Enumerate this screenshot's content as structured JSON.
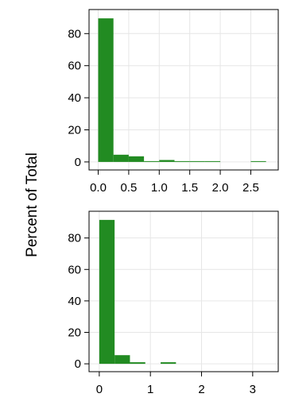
{
  "colors": {
    "bar": "#228b22",
    "grid": "#e6e6e6",
    "frame": "#000000"
  },
  "chart_data": {
    "type": "histogram",
    "ylabel": "Percent of Total",
    "grid": true,
    "panels": [
      {
        "name": "top",
        "xlim": [
          -0.15,
          2.95
        ],
        "ylim": [
          -5,
          95
        ],
        "xticks": [
          0.0,
          0.5,
          1.0,
          1.5,
          2.0,
          2.5
        ],
        "xtick_labels": [
          "0.0",
          "0.5",
          "1.0",
          "1.5",
          "2.0",
          "2.5"
        ],
        "yticks": [
          0,
          20,
          40,
          60,
          80
        ],
        "ytick_labels": [
          "0",
          "20",
          "40",
          "60",
          "80"
        ],
        "bins": [
          {
            "x0": 0.0,
            "x1": 0.25,
            "percent": 89.5
          },
          {
            "x0": 0.25,
            "x1": 0.5,
            "percent": 4.5
          },
          {
            "x0": 0.5,
            "x1": 0.75,
            "percent": 3.5
          },
          {
            "x0": 0.75,
            "x1": 1.0,
            "percent": 0.5
          },
          {
            "x0": 1.0,
            "x1": 1.25,
            "percent": 1.2
          },
          {
            "x0": 1.25,
            "x1": 1.5,
            "percent": 0.5
          },
          {
            "x0": 1.5,
            "x1": 1.75,
            "percent": 0.5
          },
          {
            "x0": 1.75,
            "x1": 2.0,
            "percent": 0.5
          },
          {
            "x0": 2.5,
            "x1": 2.75,
            "percent": 0.5
          }
        ]
      },
      {
        "name": "bottom",
        "xlim": [
          -0.2,
          3.5
        ],
        "ylim": [
          -5,
          97
        ],
        "xticks": [
          0,
          1,
          2,
          3
        ],
        "xtick_labels": [
          "0",
          "1",
          "2",
          "3"
        ],
        "yticks": [
          0,
          20,
          40,
          60,
          80
        ],
        "ytick_labels": [
          "0",
          "20",
          "40",
          "60",
          "80"
        ],
        "bins": [
          {
            "x0": 0.0,
            "x1": 0.3,
            "percent": 91.5
          },
          {
            "x0": 0.3,
            "x1": 0.6,
            "percent": 5.5
          },
          {
            "x0": 0.6,
            "x1": 0.9,
            "percent": 1.0
          },
          {
            "x0": 1.2,
            "x1": 1.5,
            "percent": 1.0
          }
        ]
      }
    ]
  }
}
